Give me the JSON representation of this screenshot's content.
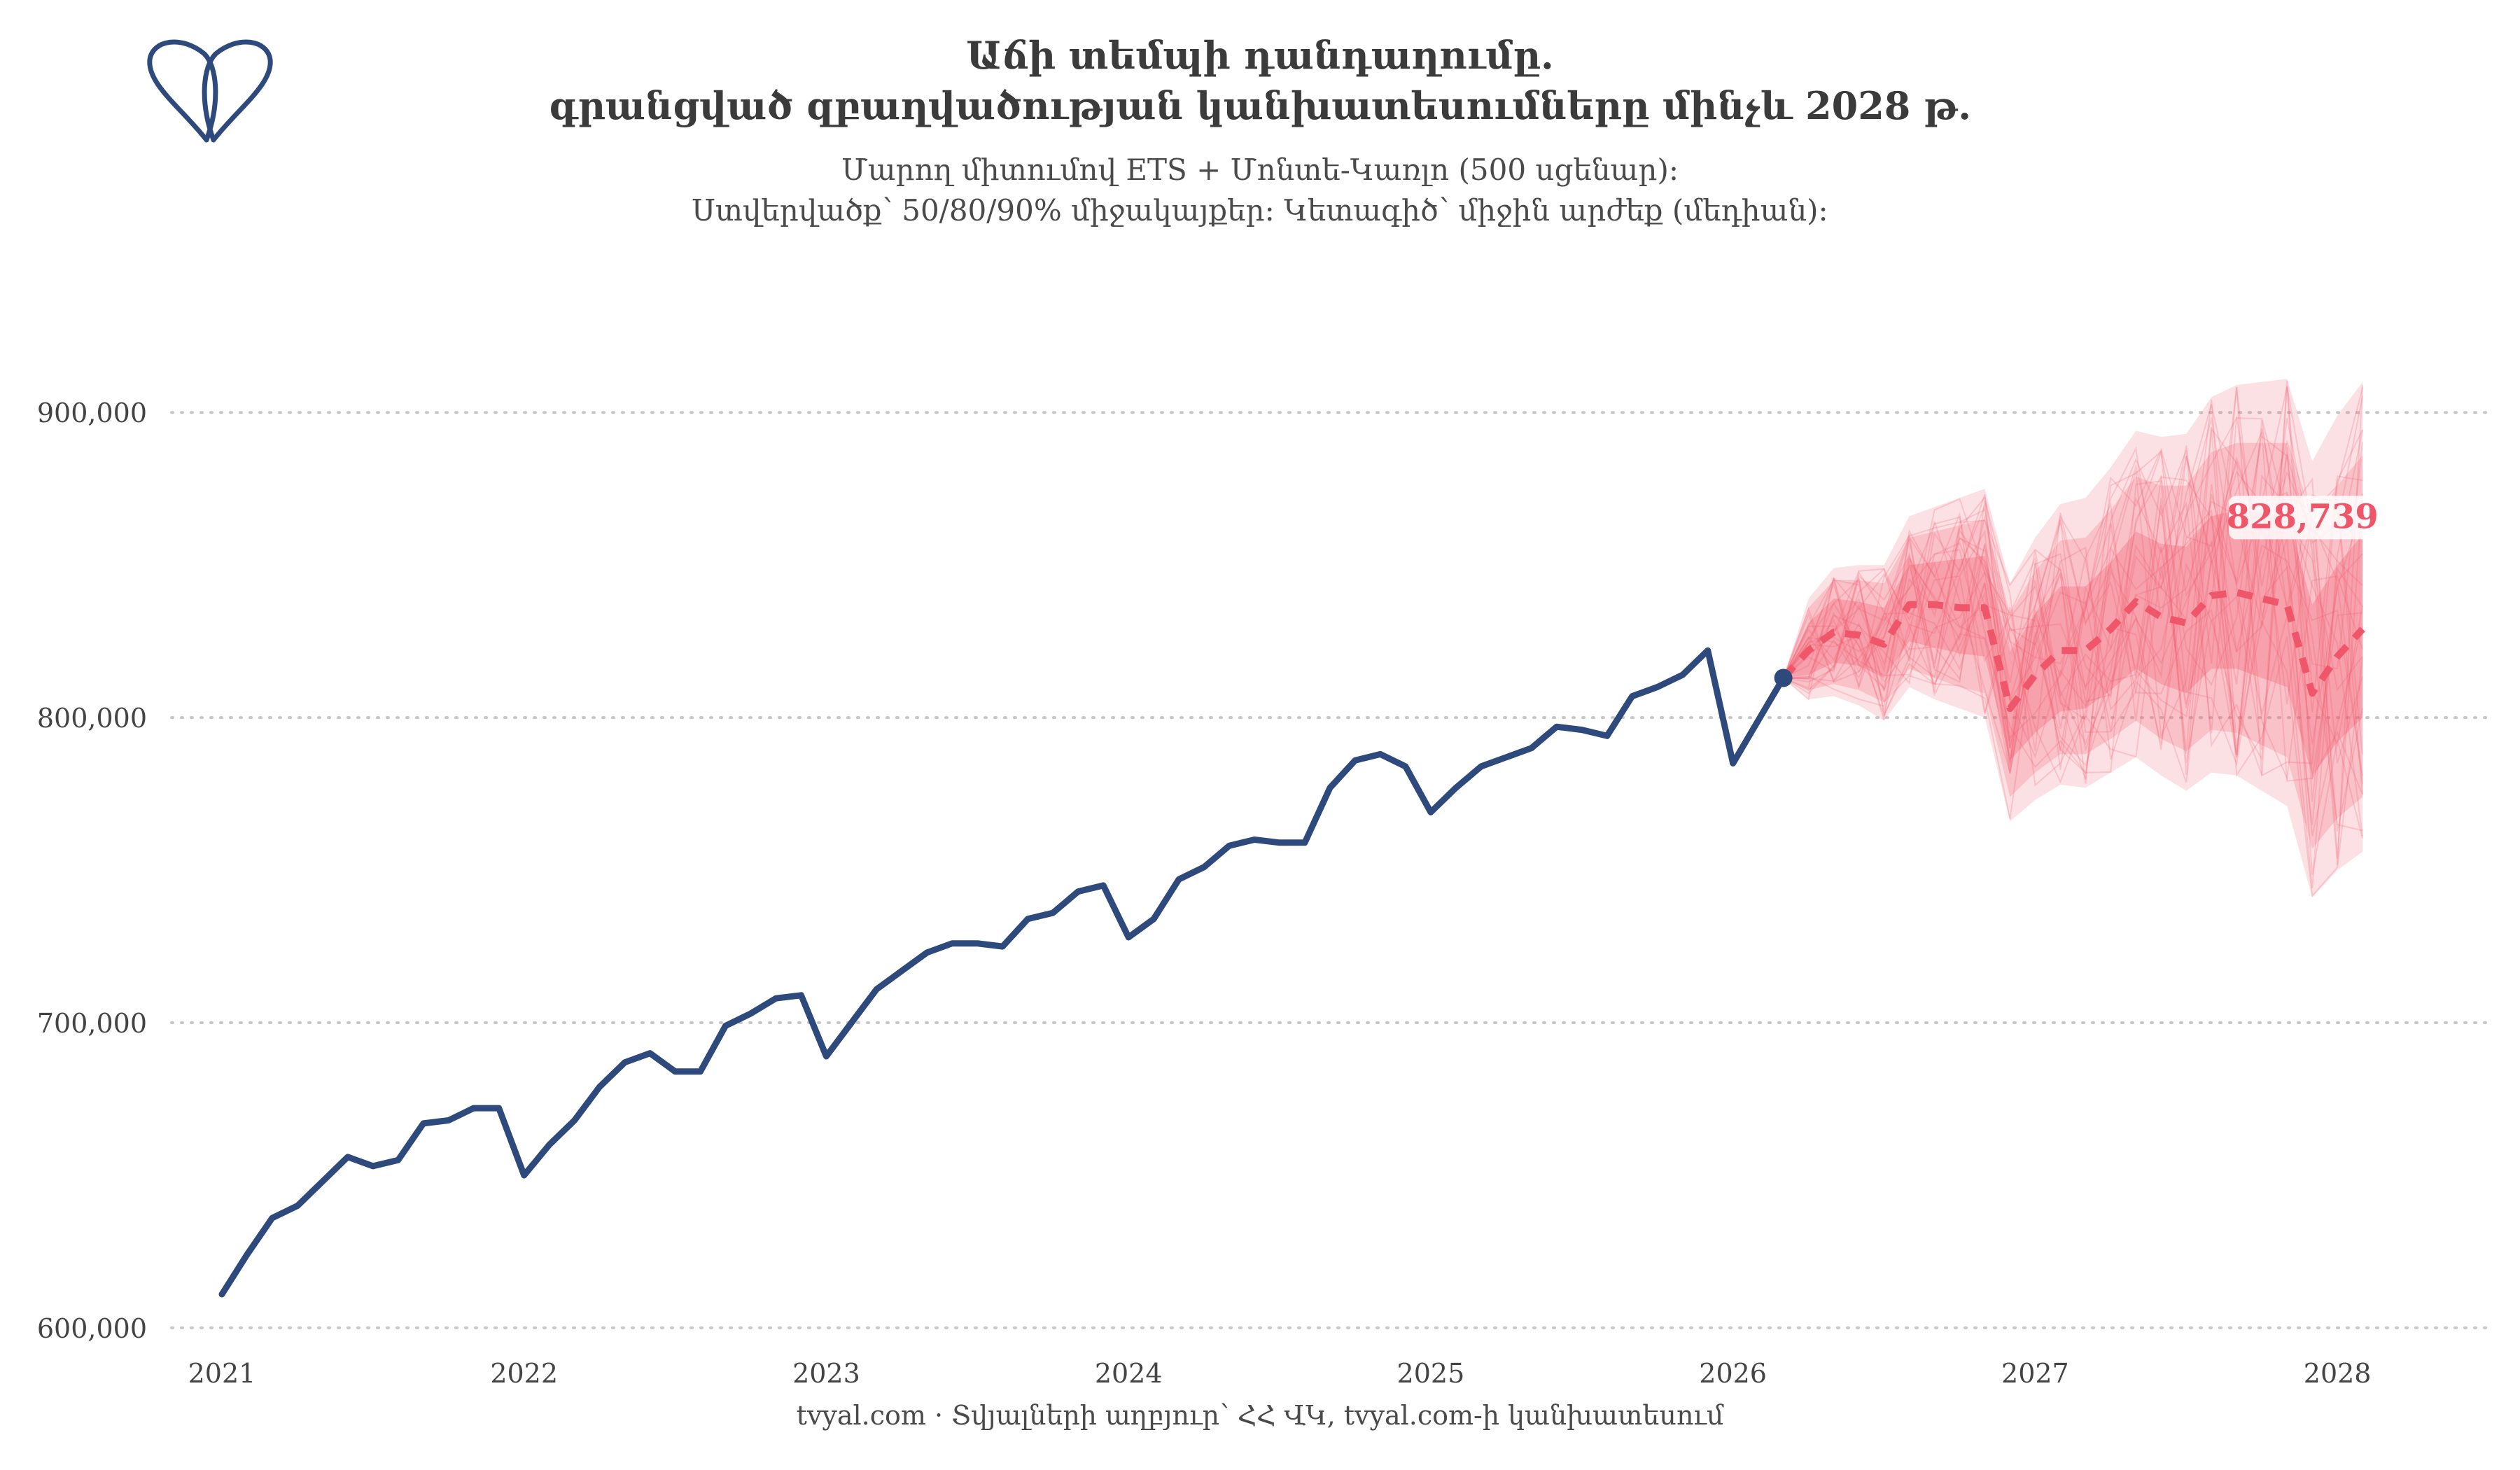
{
  "title_line1": "Աճի տեմպի դանդաղումը.",
  "title_line2": "գրանցված զբաղվածության կանխատեսումները մինչև 2028 թ.",
  "subtitle_line1": "Մարող միտումով ETS + Մոնտե-Կառլո (500 սցենար):",
  "subtitle_line2": "Ստվերվածք՝ 50/80/90% միջակայքեր: Կետագիծ՝ միջին արժեք (մեդիան):",
  "caption": "tvyal.com  ·  Տվյալների աղբյուր՝ ՀՀ ՎԿ, tvyal.com-ի կանխատեսում",
  "colors": {
    "history": "#2e4a7d",
    "forecast": "#f0566a",
    "grid": "#c8c8c8",
    "axis_text": "#444444"
  },
  "chart_data": {
    "type": "line",
    "x_axis": {
      "type": "date",
      "tick_labels": [
        "2021",
        "2022",
        "2023",
        "2024",
        "2025",
        "2026",
        "2027",
        "2028"
      ],
      "range": [
        "2020-11",
        "2028-07"
      ]
    },
    "y_axis": {
      "tick_labels": [
        "600,000",
        "700,000",
        "800,000",
        "900,000"
      ],
      "ticks": [
        600000,
        700000,
        800000,
        900000
      ],
      "range": [
        597000,
        948000
      ]
    },
    "grid": "horizontal dotted",
    "last_label": "828,739",
    "history": {
      "x_start": "2021-01",
      "frequency": "monthly",
      "values": [
        611000,
        624000,
        636000,
        640000,
        648000,
        656000,
        653000,
        655000,
        667000,
        668000,
        672000,
        672000,
        650000,
        660000,
        668000,
        679000,
        687000,
        690000,
        684000,
        684000,
        699000,
        703000,
        708000,
        709000,
        689000,
        700000,
        711000,
        717000,
        723000,
        726000,
        726000,
        725000,
        734000,
        736000,
        743000,
        745000,
        728000,
        734000,
        747000,
        751000,
        758000,
        760000,
        759000,
        759000,
        777000,
        786000,
        788000,
        784000,
        769000,
        777000,
        784000,
        787000,
        790000,
        797000,
        796000,
        794000,
        807000,
        810000,
        814000,
        822000,
        785000,
        799000,
        813000
      ]
    },
    "forecast": {
      "x_start": "2026-03",
      "frequency": "monthly",
      "median": [
        813000,
        822000,
        828000,
        827000,
        824000,
        837000,
        837000,
        836000,
        836000,
        803000,
        814000,
        822000,
        822000,
        829000,
        838000,
        833000,
        831000,
        840000,
        841000,
        839000,
        837000,
        808000,
        820000,
        829000
      ],
      "band_50": {
        "lower": [
          813000,
          814000,
          818000,
          817000,
          813000,
          825000,
          823000,
          821000,
          820000,
          786000,
          795000,
          802000,
          803000,
          809000,
          816000,
          811000,
          808000,
          816000,
          816000,
          813000,
          810000,
          781000,
          792000,
          800000
        ],
        "upper": [
          813000,
          831000,
          839000,
          838000,
          836000,
          850000,
          851000,
          852000,
          853000,
          821000,
          834000,
          843000,
          843000,
          851000,
          861000,
          857000,
          856000,
          866000,
          868000,
          867000,
          866000,
          837000,
          850000,
          860000
        ]
      },
      "band_80": {
        "lower": [
          813000,
          809000,
          811000,
          809000,
          805000,
          816000,
          813000,
          810000,
          808000,
          774000,
          782000,
          788000,
          788000,
          793000,
          799000,
          793000,
          789000,
          796000,
          795000,
          791000,
          787000,
          757000,
          767000,
          774000
        ],
        "upper": [
          813000,
          836000,
          845000,
          845000,
          844000,
          859000,
          861000,
          863000,
          865000,
          834000,
          848000,
          858000,
          859000,
          868000,
          879000,
          876000,
          876000,
          887000,
          890000,
          890000,
          890000,
          862000,
          876000,
          886000
        ]
      },
      "band_90": {
        "lower": [
          813000,
          806000,
          807000,
          804000,
          799000,
          810000,
          806000,
          803000,
          800000,
          766000,
          773000,
          778000,
          777000,
          782000,
          787000,
          781000,
          776000,
          782000,
          781000,
          776000,
          771000,
          741000,
          750000,
          756000
        ],
        "upper": [
          813000,
          839000,
          849000,
          850000,
          850000,
          866000,
          869000,
          872000,
          875000,
          844000,
          859000,
          870000,
          872000,
          882000,
          894000,
          892000,
          893000,
          905000,
          909000,
          910000,
          911000,
          884000,
          899000,
          910000
        ]
      }
    }
  }
}
